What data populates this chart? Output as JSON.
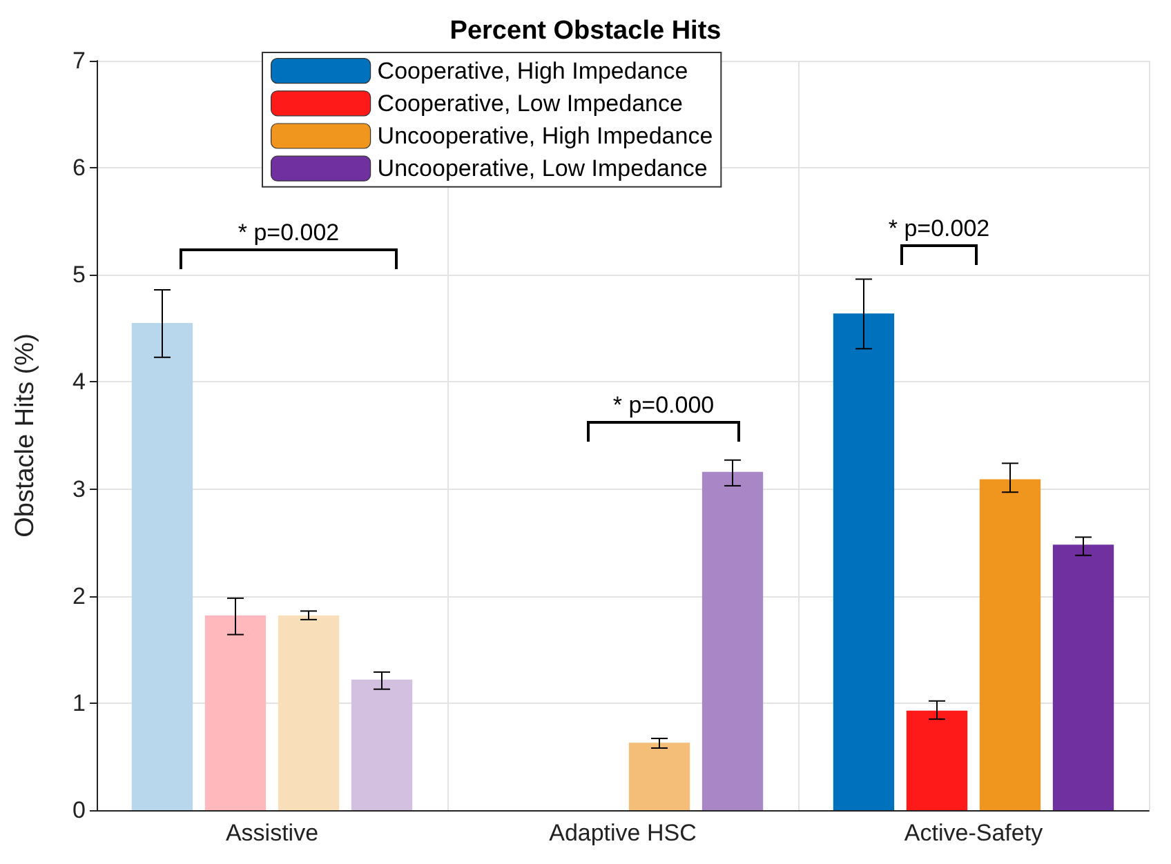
{
  "chart_data": {
    "type": "bar",
    "title": "Percent Obstacle Hits",
    "ylabel": "Obstacle Hits (%)",
    "categories": [
      "Assistive",
      "Adaptive HSC",
      "Active-Safety"
    ],
    "series": [
      {
        "name": "Cooperative, High Impedance",
        "color": "#0072bd",
        "colors": [
          "#b9d7ec",
          "#0072bd",
          "#0072bd"
        ],
        "values": [
          4.55,
          0,
          4.64
        ],
        "errors": [
          [
            4.23,
            4.86
          ],
          null,
          [
            4.31,
            4.96
          ]
        ]
      },
      {
        "name": "Cooperative, Low Impedance",
        "color": "#ff1a1a",
        "colors": [
          "#ffb9bd",
          "#d95319",
          "#ff1a1a"
        ],
        "values": [
          1.82,
          0,
          0.93
        ],
        "errors": [
          [
            1.64,
            1.98
          ],
          null,
          [
            0.85,
            1.02
          ]
        ]
      },
      {
        "name": "Uncooperative, High Impedance",
        "color": "#f0951e",
        "colors": [
          "#f9dfb9",
          "#f4be78",
          "#f0951e"
        ],
        "values": [
          1.82,
          0.63,
          3.09
        ],
        "errors": [
          [
            1.78,
            1.86
          ],
          [
            0.58,
            0.67
          ],
          [
            2.97,
            3.24
          ]
        ]
      },
      {
        "name": "Uncooperative, Low Impedance",
        "color": "#7030a0",
        "colors": [
          "#d3bfe0",
          "#a986c6",
          "#7030a0"
        ],
        "values": [
          1.22,
          3.16,
          2.48
        ],
        "errors": [
          [
            1.13,
            1.29
          ],
          [
            3.03,
            3.27
          ],
          [
            2.38,
            2.55
          ]
        ]
      }
    ],
    "ylim": [
      0,
      7
    ],
    "yticks": [
      0,
      1,
      2,
      3,
      4,
      5,
      6,
      7
    ],
    "grid": true,
    "legend": "top left",
    "annotations": [
      "* p=0.002",
      "* p=0.000",
      "* p=0.002"
    ]
  }
}
